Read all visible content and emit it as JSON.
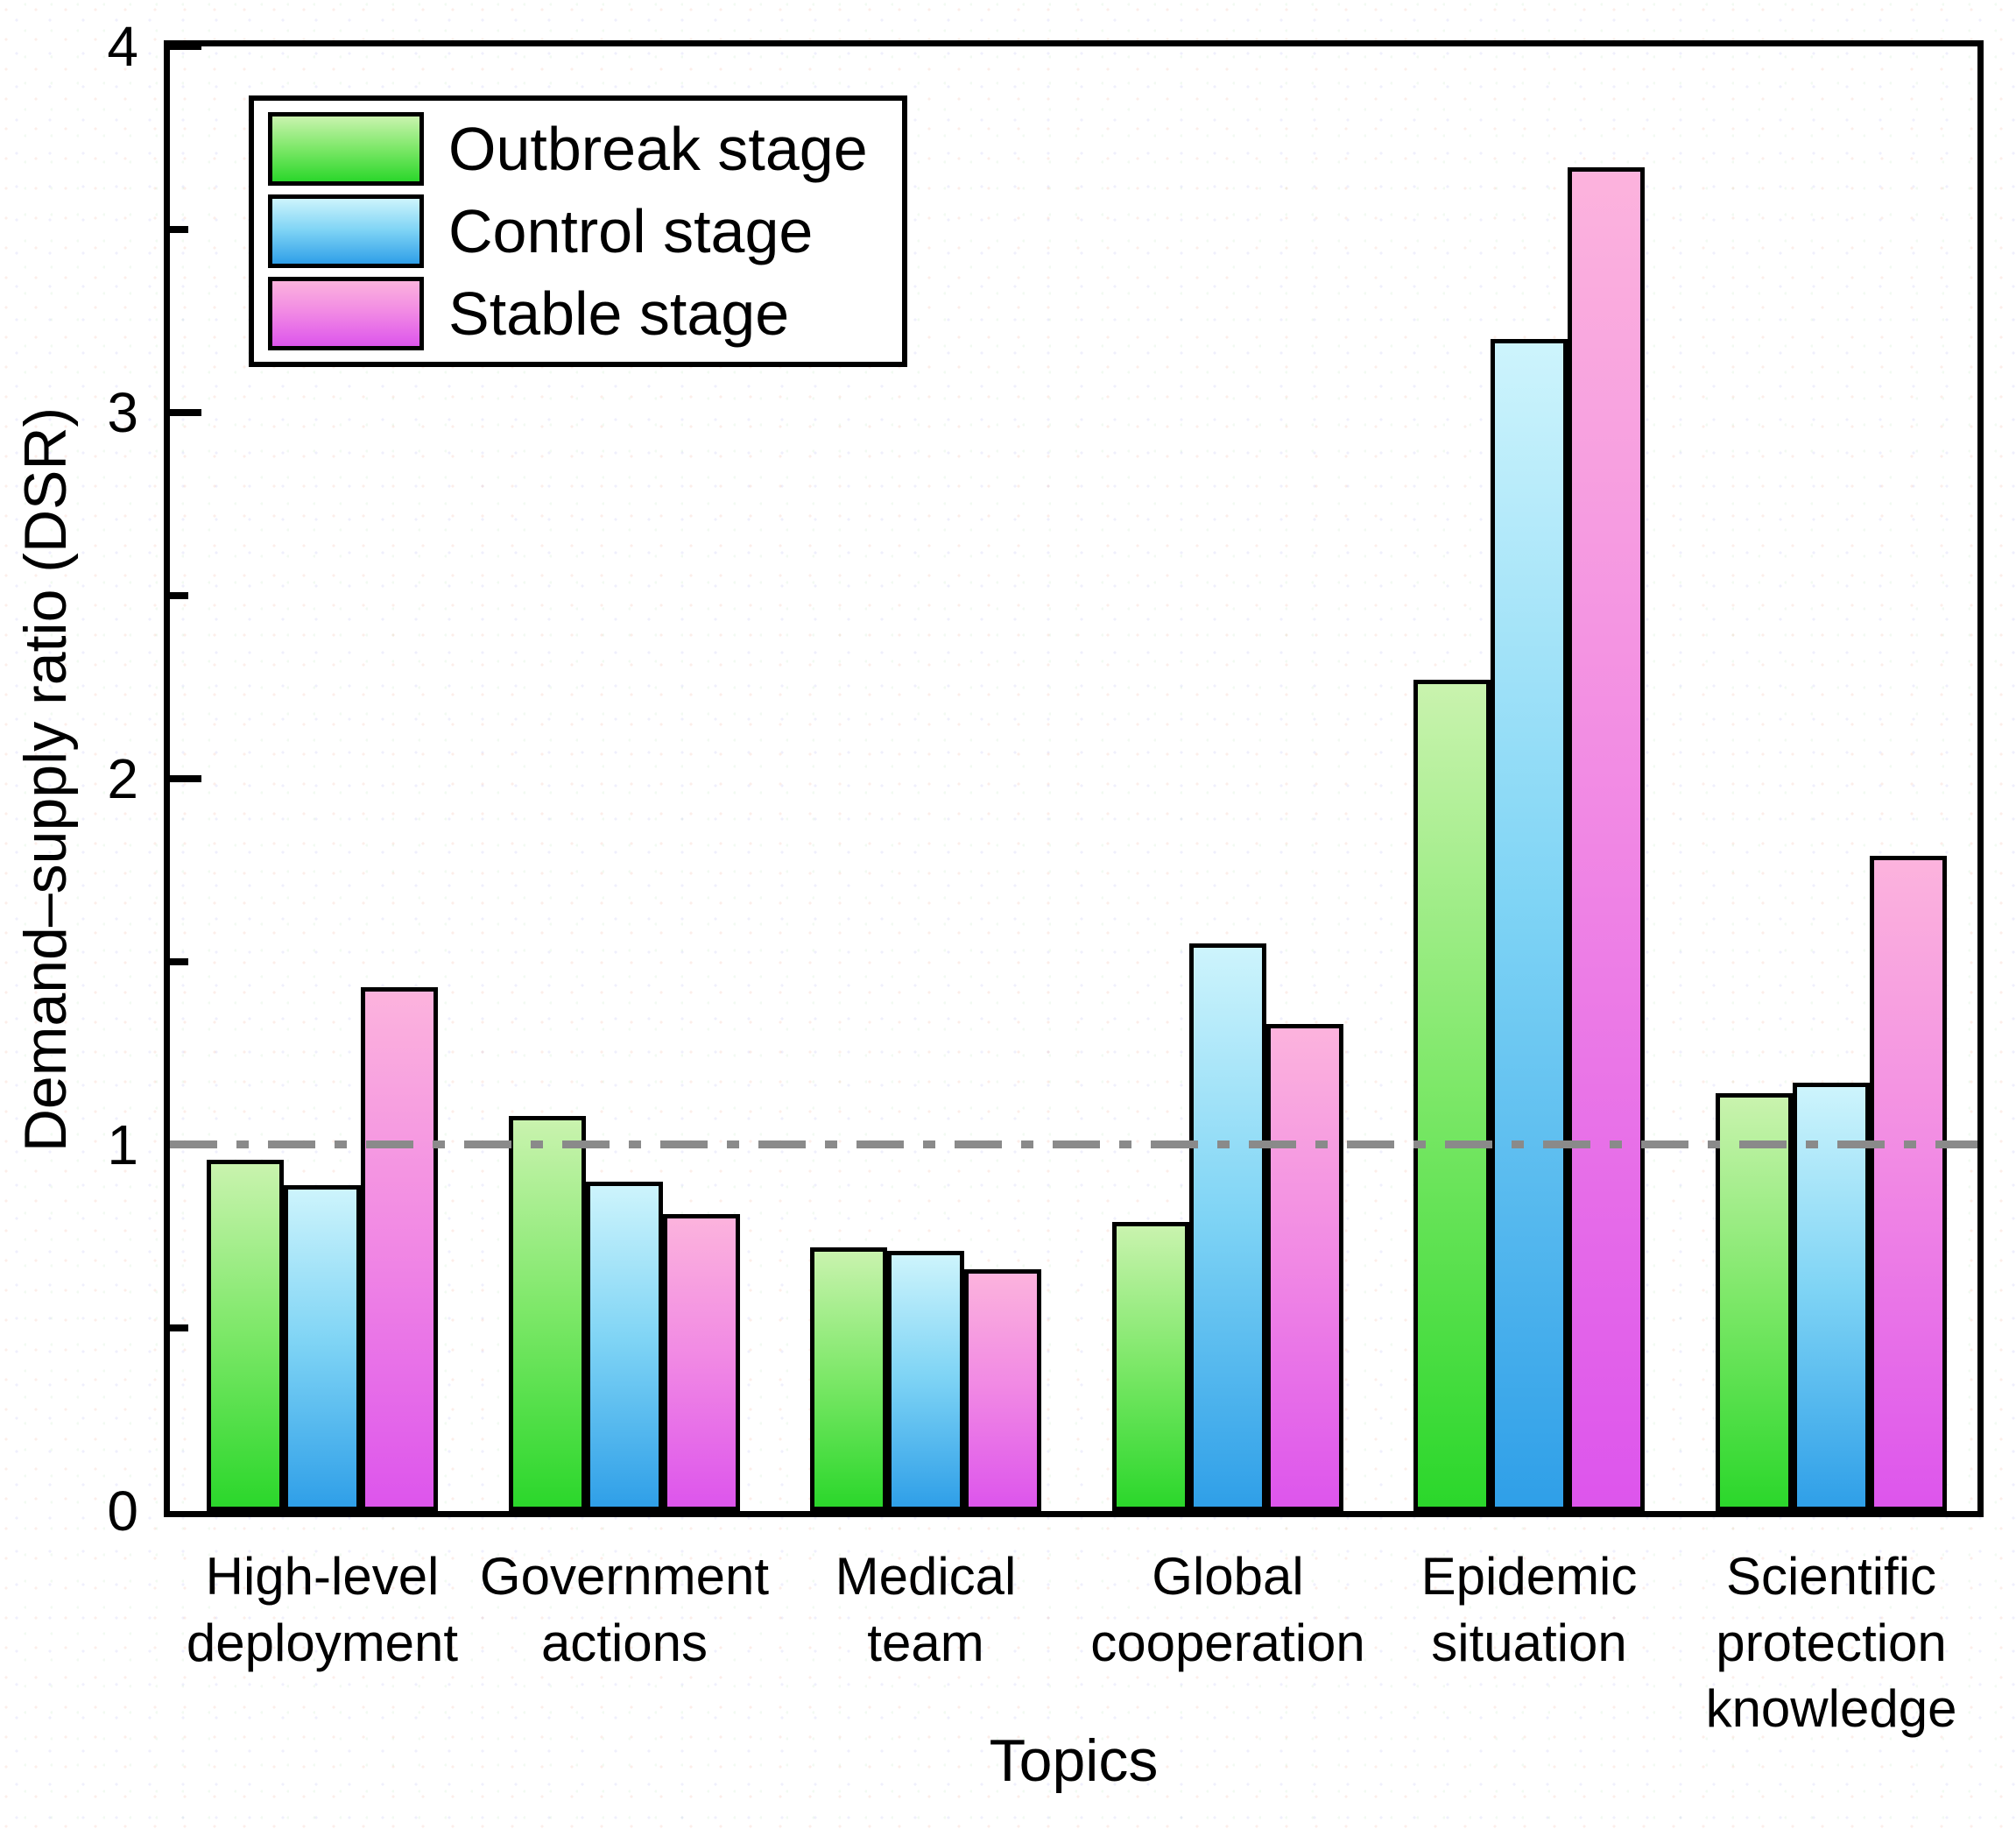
{
  "figure": {
    "background_color": "#ffffff",
    "frame_color": "#000000",
    "text_color": "#000000"
  },
  "chart_data": {
    "type": "bar",
    "title": "",
    "xlabel": "Topics",
    "ylabel": "Demand–supply ratio (DSR)",
    "ylim": [
      0,
      4
    ],
    "yticks": [
      0,
      1,
      2,
      3,
      4
    ],
    "minor_yticks": [
      0.5,
      1.5,
      2.5,
      3.5
    ],
    "grid": false,
    "legend_position": "top-left",
    "reference_line": {
      "y": 1,
      "style": "dash-dot",
      "color": "#8a8a8a"
    },
    "categories": [
      "High-level\ndeployment",
      "Government\nactions",
      "Medical\nteam",
      "Global\ncooperation",
      "Epidemic\nsituation",
      "Scientific\nprotection\nknowledge"
    ],
    "series": [
      {
        "name": "Outbreak stage",
        "color_top": "#c9f3ae",
        "color_mid": "#7fe86a",
        "color_bottom": "#2bd72b",
        "values": [
          0.96,
          1.08,
          0.72,
          0.79,
          2.27,
          1.14
        ]
      },
      {
        "name": "Control stage",
        "color_top": "#cdf4fc",
        "color_mid": "#7fd4f5",
        "color_bottom": "#2f9fe8",
        "values": [
          0.89,
          0.9,
          0.71,
          1.55,
          3.2,
          1.17
        ]
      },
      {
        "name": "Stable stage",
        "color_top": "#fcb3dd",
        "color_mid": "#f189e4",
        "color_bottom": "#dd55ec",
        "values": [
          1.43,
          0.81,
          0.66,
          1.33,
          3.67,
          1.79
        ]
      }
    ]
  }
}
